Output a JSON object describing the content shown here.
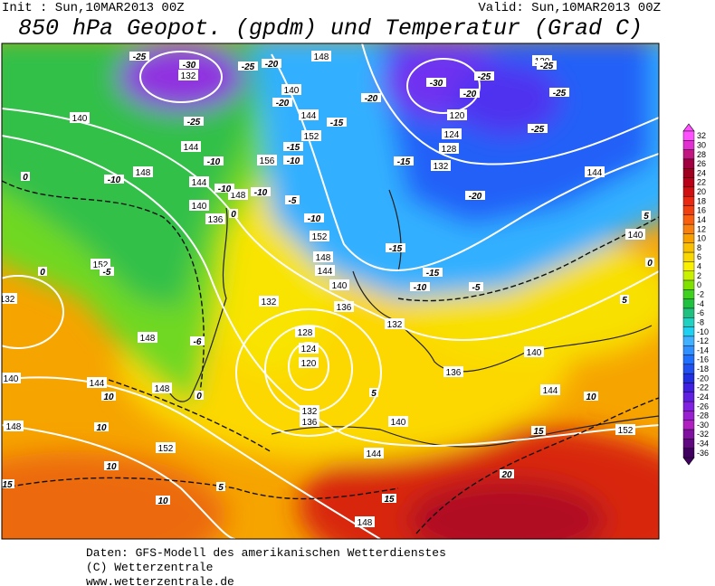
{
  "header": {
    "init": "Init : Sun,10MAR2013 00Z",
    "valid": "Valid: Sun,10MAR2013 00Z",
    "title": "850 hPa Geopot. (gpdm) und Temperatur (Grad C)"
  },
  "colorbar": {
    "labels": [
      32,
      30,
      28,
      26,
      24,
      22,
      20,
      18,
      16,
      14,
      12,
      10,
      8,
      6,
      4,
      2,
      0,
      -2,
      -4,
      -6,
      -8,
      -10,
      -12,
      -14,
      -16,
      -18,
      -20,
      -22,
      -24,
      -26,
      -28,
      -30,
      -32,
      -34,
      -36
    ],
    "colors": [
      "#ff50ff",
      "#e030d0",
      "#c01880",
      "#a00040",
      "#a00020",
      "#b80018",
      "#d01010",
      "#e82810",
      "#f04010",
      "#f86010",
      "#f88010",
      "#f8a000",
      "#f8c000",
      "#f8d800",
      "#f8f000",
      "#c8f000",
      "#80e000",
      "#40d020",
      "#20c040",
      "#20c080",
      "#20d0c0",
      "#20d0f0",
      "#40b0ff",
      "#3090ff",
      "#2070ff",
      "#2050f0",
      "#2030e0",
      "#4020e0",
      "#6020e0",
      "#8020e0",
      "#9820d0",
      "#b020c0",
      "#8010a0",
      "#600880",
      "#400060"
    ]
  },
  "map": {
    "geopotential_labels": [
      "148",
      "132",
      "140",
      "140",
      "144",
      "152",
      "144",
      "156",
      "148",
      "144",
      "140",
      "148",
      "136",
      "152",
      "148",
      "144",
      "140",
      "136",
      "132",
      "132",
      "128",
      "124",
      "120",
      "132",
      "136",
      "140",
      "144",
      "152",
      "148",
      "144",
      "140",
      "148",
      "132",
      "152",
      "148",
      "120",
      "120",
      "124",
      "128",
      "132",
      "144",
      "140",
      "140",
      "144",
      "136",
      "148",
      "152"
    ],
    "temperature_labels": [
      "-25",
      "-30",
      "-25",
      "-20",
      "-30",
      "-25",
      "-25",
      "-20",
      "-25",
      "-25",
      "-20",
      "-20",
      "-15",
      "-25",
      "-15",
      "-10",
      "-10",
      "-10",
      "-15",
      "-20",
      "-10",
      "-10",
      "-5",
      "-10",
      "-5",
      "-6",
      "-15",
      "-15",
      "-10",
      "-5",
      "0",
      "0",
      "0",
      "5",
      "0",
      "5",
      "10",
      "10",
      "10",
      "10",
      "15",
      "5",
      "15",
      "20",
      "15",
      "10",
      "5",
      "0"
    ]
  },
  "footer": {
    "lines": [
      "Daten: GFS-Modell des amerikanischen Wetterdienstes",
      "(C) Wetterzentrale",
      "www.wetterzentrale.de"
    ]
  }
}
